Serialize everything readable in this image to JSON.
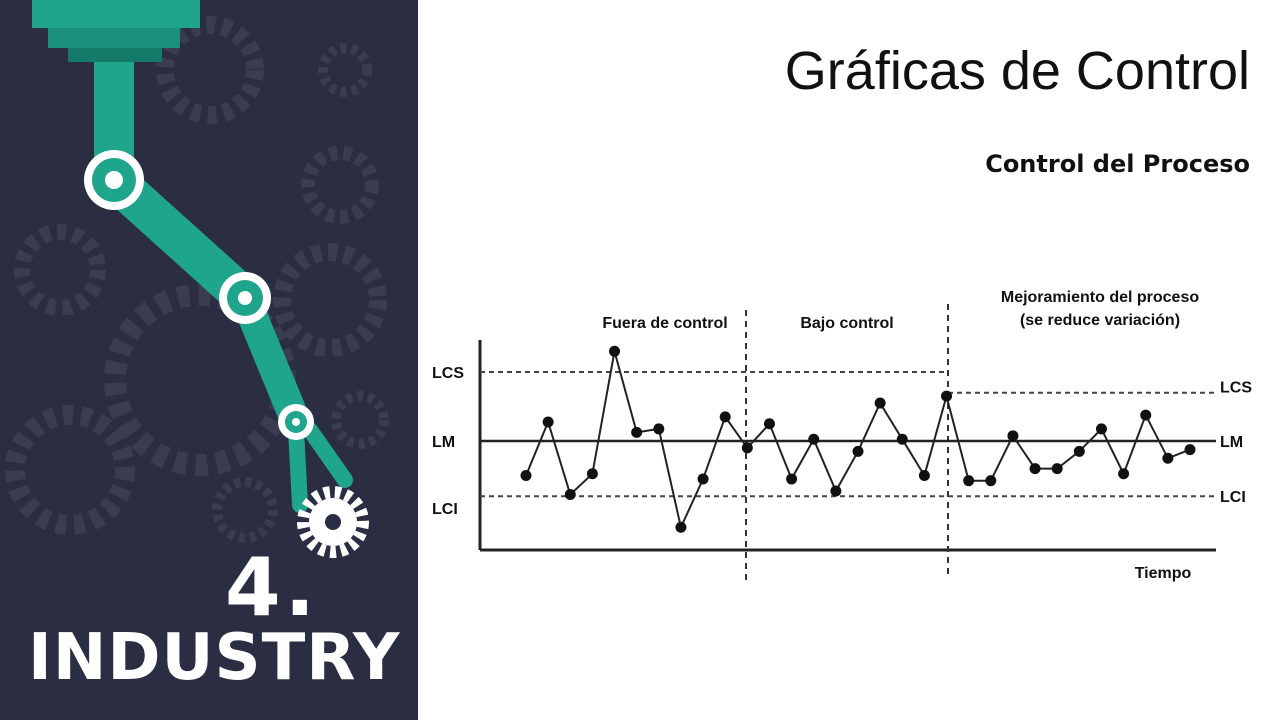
{
  "slide": {
    "title": "Gráficas de Control",
    "subtitle": "Control del Proceso"
  },
  "sidebar": {
    "number": "4.",
    "word": "INDUSTRY",
    "colors": {
      "background": "#2b2d42",
      "arm": "#1fa58c",
      "gear": "#3a3d51"
    }
  },
  "chart_data": {
    "type": "line",
    "xlabel": "Tiempo",
    "sections": [
      {
        "label_lines": [
          "Fuera de control"
        ]
      },
      {
        "label_lines": [
          "Bajo control"
        ]
      },
      {
        "label_lines": [
          "Mejoramiento del proceso",
          "(se reduce variación)"
        ]
      }
    ],
    "limits_labels": {
      "ucl": "LCS",
      "center": "LM",
      "lcl": "LCI"
    },
    "limits_initial": {
      "ucl": 2.0,
      "center": 0,
      "lcl": -1.6
    },
    "limits_improved": {
      "ucl": 1.4,
      "center": 0,
      "lcl": -1.6
    },
    "ylim": [
      -3.1,
      2.6
    ],
    "series": [
      {
        "values": [
          -1.0,
          0.55,
          -1.55,
          -0.95,
          2.6,
          0.25,
          0.35,
          -2.5,
          -1.1,
          0.7,
          -0.2,
          0.5,
          -1.1,
          0.05,
          -1.45,
          -0.3,
          1.1,
          0.05,
          -1.0,
          1.3,
          -1.15,
          -1.15,
          0.15,
          -0.8,
          -0.8,
          -0.3,
          0.35,
          -0.95,
          0.75,
          -0.5,
          -0.25
        ]
      }
    ]
  }
}
